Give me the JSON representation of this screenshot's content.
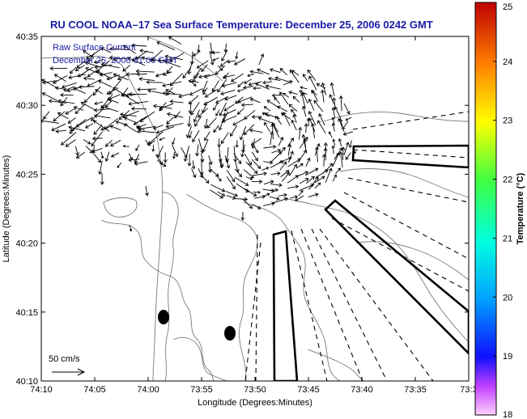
{
  "title": "RU COOL  NOAA–17  Sea Surface Temperature:  December 25, 2006 0242 GMT",
  "annotation": {
    "line1": "Raw Surface Current",
    "line2": "December 25, 2006 01:00 GMT"
  },
  "scale": {
    "label": "50 cm/s"
  },
  "axes": {
    "xlabel": "Longitude (Degrees:Minutes)",
    "ylabel": "Latitude (Degrees:Minutes)",
    "xticks": [
      "74:10",
      "74:05",
      "74:00",
      "73:55",
      "73:50",
      "73:45",
      "73:40",
      "73:35",
      "73:3"
    ],
    "yticks": [
      "40:35",
      "40:30",
      "40:25",
      "40:20",
      "40:15",
      "40:10"
    ]
  },
  "colorbar": {
    "label": "Temperature (°C)",
    "ticks": [
      "25",
      "24",
      "23",
      "22",
      "21",
      "20",
      "19",
      "18"
    ],
    "min": 18,
    "max": 25
  },
  "colors": {
    "title_text": "#1a1aa6",
    "contour": "#7a7a7a",
    "vectors": "#000000"
  }
}
